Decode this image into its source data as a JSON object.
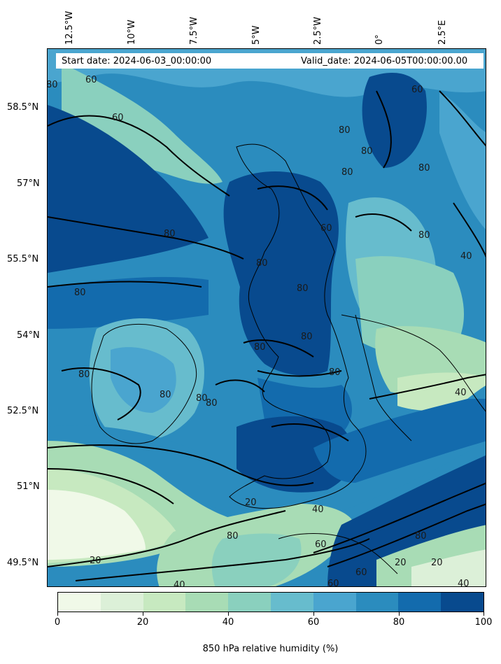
{
  "header": {
    "start_date": "Start date: 2024-06-03_00:00:00",
    "valid_date": "Valid_date: 2024-06-05T00:00:00.00"
  },
  "longitude_labels": [
    "12.5°W",
    "10°W",
    "7.5°W",
    "5°W",
    "2.5°W",
    "0°",
    "2.5°E"
  ],
  "latitude_labels": [
    "58.5°N",
    "57°N",
    "55.5°N",
    "54°N",
    "52.5°N",
    "51°N",
    "49.5°N"
  ],
  "contour_labels": [
    "80",
    "60",
    "60",
    "80",
    "80",
    "80",
    "80",
    "80",
    "60",
    "80",
    "80",
    "60",
    "80",
    "80",
    "80",
    "80",
    "80",
    "80",
    "80",
    "80",
    "80",
    "40",
    "40",
    "20",
    "40",
    "60",
    "80",
    "60",
    "20",
    "40",
    "20",
    "20",
    "40",
    "60",
    "80"
  ],
  "colorbar": {
    "title": "850 hPa relative humidity (%)",
    "tick_labels": [
      "0",
      "20",
      "40",
      "60",
      "80",
      "100"
    ],
    "levels": [
      0,
      10,
      20,
      30,
      40,
      50,
      60,
      70,
      80,
      90,
      100
    ],
    "colors": [
      "#f0f9e8",
      "#dcf0d8",
      "#c7e9c0",
      "#a8dcb5",
      "#8ad0be",
      "#67bccd",
      "#4aa5cf",
      "#2b8cbe",
      "#136bad",
      "#084a8e"
    ]
  }
}
